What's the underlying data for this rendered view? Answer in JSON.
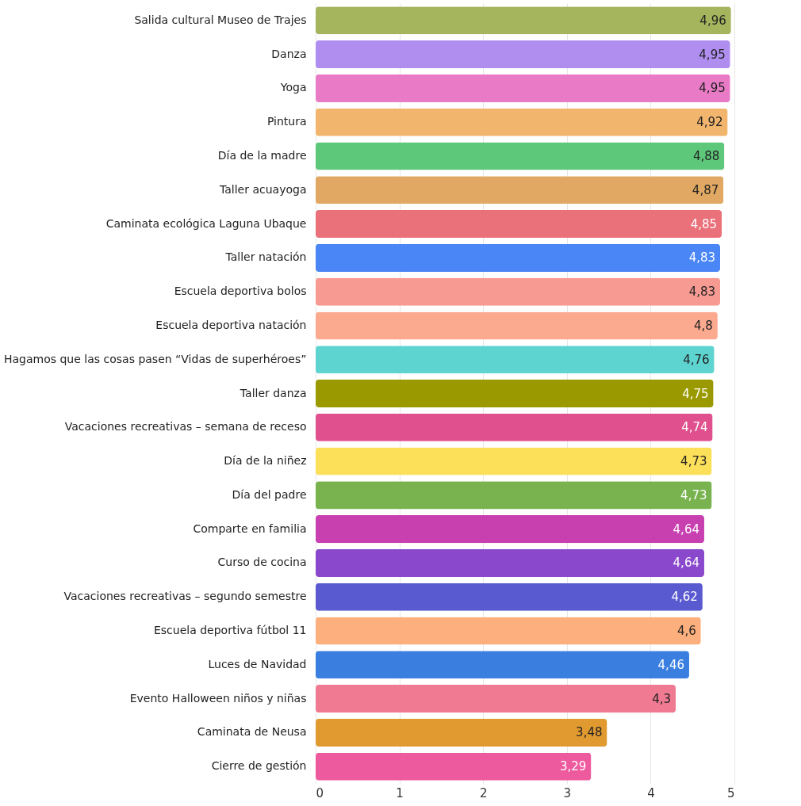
{
  "chart_data": {
    "type": "bar",
    "orientation": "horizontal",
    "categories": [
      "Salida cultural Museo de Trajes",
      "Danza",
      "Yoga",
      "Pintura",
      "Día de la madre",
      "Taller acuayoga",
      "Caminata ecológica Laguna Ubaque",
      "Taller natación",
      "Escuela deportiva bolos",
      "Escuela deportiva natación",
      "Hagamos que las cosas pasen “Vidas de superhéroes”",
      "Taller danza",
      "Vacaciones recreativas – semana de receso",
      "Día de la niñez",
      "Día del padre",
      "Comparte en familia",
      "Curso de cocina",
      "Vacaciones recreativas – segundo semestre",
      "Escuela deportiva fútbol 11",
      "Luces de Navidad",
      "Evento Halloween niños y niñas",
      "Caminata de Neusa",
      "Cierre de gestión"
    ],
    "values": [
      4.96,
      4.95,
      4.95,
      4.92,
      4.88,
      4.87,
      4.85,
      4.83,
      4.83,
      4.8,
      4.76,
      4.75,
      4.74,
      4.73,
      4.73,
      4.64,
      4.64,
      4.62,
      4.6,
      4.46,
      4.3,
      3.48,
      3.29
    ],
    "value_labels": [
      "4,96",
      "4,95",
      "4,95",
      "4,92",
      "4,88",
      "4,87",
      "4,85",
      "4,83",
      "4,83",
      "4,8",
      "4,76",
      "4,75",
      "4,74",
      "4,73",
      "4,73",
      "4,64",
      "4,64",
      "4,62",
      "4,6",
      "4,46",
      "4,3",
      "3,48",
      "3,29"
    ],
    "colors": [
      "#a4b55e",
      "#b08ef0",
      "#e97bc6",
      "#f2b56e",
      "#5ec87a",
      "#e0a862",
      "#ea707a",
      "#4a86f5",
      "#f79a92",
      "#fba98f",
      "#5ed4d1",
      "#9a9a00",
      "#e0508e",
      "#fde05a",
      "#78b350",
      "#c840b0",
      "#8a48cc",
      "#5a5ad0",
      "#fdb07e",
      "#3a7fe0",
      "#ef7a92",
      "#e09a30",
      "#ee5a9e"
    ],
    "xlim": [
      0,
      5
    ],
    "xticks": [
      0,
      1,
      2,
      3,
      4,
      5
    ],
    "grid": "x"
  }
}
